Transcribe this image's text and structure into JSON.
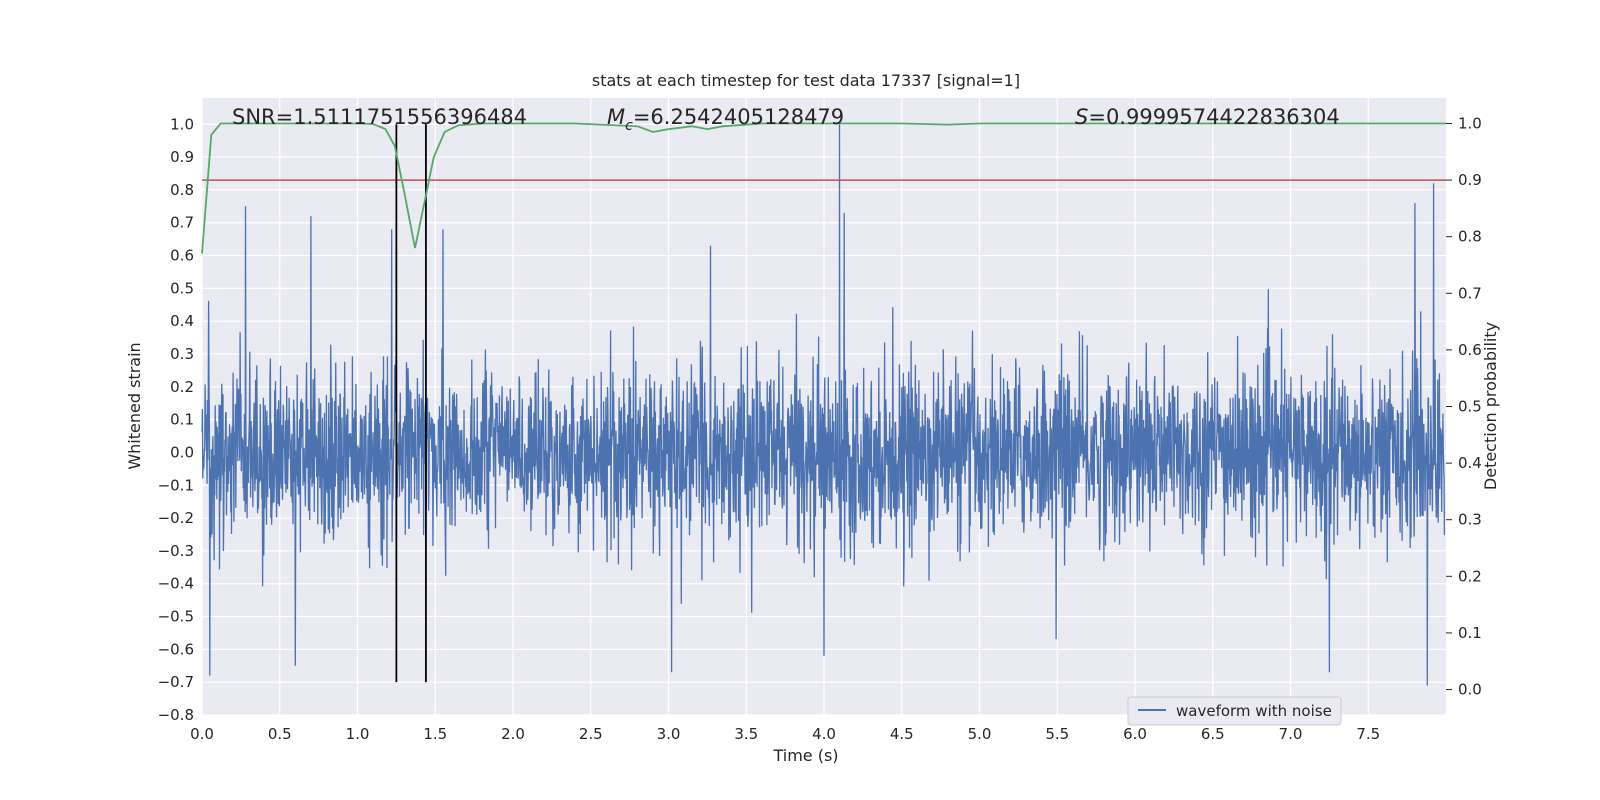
{
  "chart_data": {
    "type": "line",
    "title": "stats at each timestep for test data 17337 [signal=1]",
    "xlabel": "Time (s)",
    "ylabel": "Whitened strain",
    "y2label": "Detection probability",
    "xlim": [
      0.0,
      8.0
    ],
    "ylim": [
      -0.8,
      1.08
    ],
    "y2lim": [
      -0.045,
      1.045
    ],
    "xticks": [
      0.0,
      0.5,
      1.0,
      1.5,
      2.0,
      2.5,
      3.0,
      3.5,
      4.0,
      4.5,
      5.0,
      5.5,
      6.0,
      6.5,
      7.0,
      7.5
    ],
    "xtick_labels": [
      "0.0",
      "0.5",
      "1.0",
      "1.5",
      "2.0",
      "2.5",
      "3.0",
      "3.5",
      "4.0",
      "4.5",
      "5.0",
      "5.5",
      "6.0",
      "6.5",
      "7.0",
      "7.5"
    ],
    "yticks": [
      -0.8,
      -0.7,
      -0.6,
      -0.5,
      -0.4,
      -0.3,
      -0.2,
      -0.1,
      0.0,
      0.1,
      0.2,
      0.3,
      0.4,
      0.5,
      0.6,
      0.7,
      0.8,
      0.9,
      1.0
    ],
    "ytick_labels": [
      "−0.8",
      "−0.7",
      "−0.6",
      "−0.5",
      "−0.4",
      "−0.3",
      "−0.2",
      "−0.1",
      "0.0",
      "0.1",
      "0.2",
      "0.3",
      "0.4",
      "0.5",
      "0.6",
      "0.7",
      "0.8",
      "0.9",
      "1.0"
    ],
    "y2ticks": [
      0.0,
      0.1,
      0.2,
      0.3,
      0.4,
      0.5,
      0.6,
      0.7,
      0.8,
      0.9,
      1.0
    ],
    "y2tick_labels": [
      "0.0",
      "0.1",
      "0.2",
      "0.3",
      "0.4",
      "0.5",
      "0.6",
      "0.7",
      "0.8",
      "0.9",
      "1.0"
    ],
    "grid": true,
    "legend_position": "lower-right",
    "annotations": {
      "snr": "SNR=1.5111751556396484",
      "mc_symbol": "M",
      "mc_subscript": "c",
      "mc_value": "=6.2542405128479",
      "s_symbol": "S",
      "s_value": "=0.9999574422836304"
    },
    "series": [
      {
        "name": "waveform with noise",
        "axis": "left",
        "color": "#4c72b0",
        "style": "noise",
        "sample_rate_hz": 400,
        "noise_sigma": 0.13,
        "peaks": [
          {
            "t": 0.28,
            "v": 0.75
          },
          {
            "t": 0.7,
            "v": 0.72
          },
          {
            "t": 1.22,
            "v": 0.68
          },
          {
            "t": 1.55,
            "v": 0.68
          },
          {
            "t": 3.27,
            "v": 0.63
          },
          {
            "t": 4.1,
            "v": 1.0
          },
          {
            "t": 4.13,
            "v": 0.73
          },
          {
            "t": 7.8,
            "v": 0.76
          },
          {
            "t": 7.92,
            "v": 0.82
          },
          {
            "t": 0.05,
            "v": -0.68
          },
          {
            "t": 0.6,
            "v": -0.65
          },
          {
            "t": 3.02,
            "v": -0.67
          },
          {
            "t": 4.0,
            "v": -0.62
          },
          {
            "t": 7.25,
            "v": -0.67
          },
          {
            "t": 7.88,
            "v": -0.71
          }
        ]
      },
      {
        "name": "",
        "axis": "right",
        "color": "#55a868",
        "x": [
          0.0,
          0.06,
          0.12,
          0.2,
          0.4,
          0.6,
          0.8,
          1.0,
          1.1,
          1.18,
          1.24,
          1.3,
          1.37,
          1.43,
          1.49,
          1.56,
          1.65,
          1.8,
          2.0,
          2.4,
          2.8,
          2.9,
          3.0,
          3.15,
          3.25,
          3.35,
          3.6,
          4.0,
          4.5,
          4.8,
          5.0,
          5.5,
          6.0,
          6.5,
          7.0,
          7.5,
          8.0
        ],
        "y": [
          0.77,
          0.98,
          1.0,
          1.0,
          1.0,
          1.0,
          1.0,
          1.0,
          0.999,
          0.99,
          0.96,
          0.88,
          0.78,
          0.86,
          0.94,
          0.985,
          0.997,
          1.0,
          1.0,
          1.0,
          0.995,
          0.985,
          0.99,
          0.995,
          0.99,
          0.995,
          1.0,
          1.0,
          1.0,
          0.998,
          1.0,
          1.0,
          1.0,
          1.0,
          1.0,
          1.0,
          1.0
        ]
      },
      {
        "name": "",
        "axis": "right",
        "color": "#c44e52",
        "style": "hline",
        "y": 0.9
      }
    ],
    "vertical_lines": [
      {
        "x": 1.25,
        "color": "#000000",
        "ymin": -0.7,
        "ymax": 1.0
      },
      {
        "x": 1.44,
        "color": "#000000",
        "ymin": -0.7,
        "ymax": 1.0
      }
    ]
  }
}
